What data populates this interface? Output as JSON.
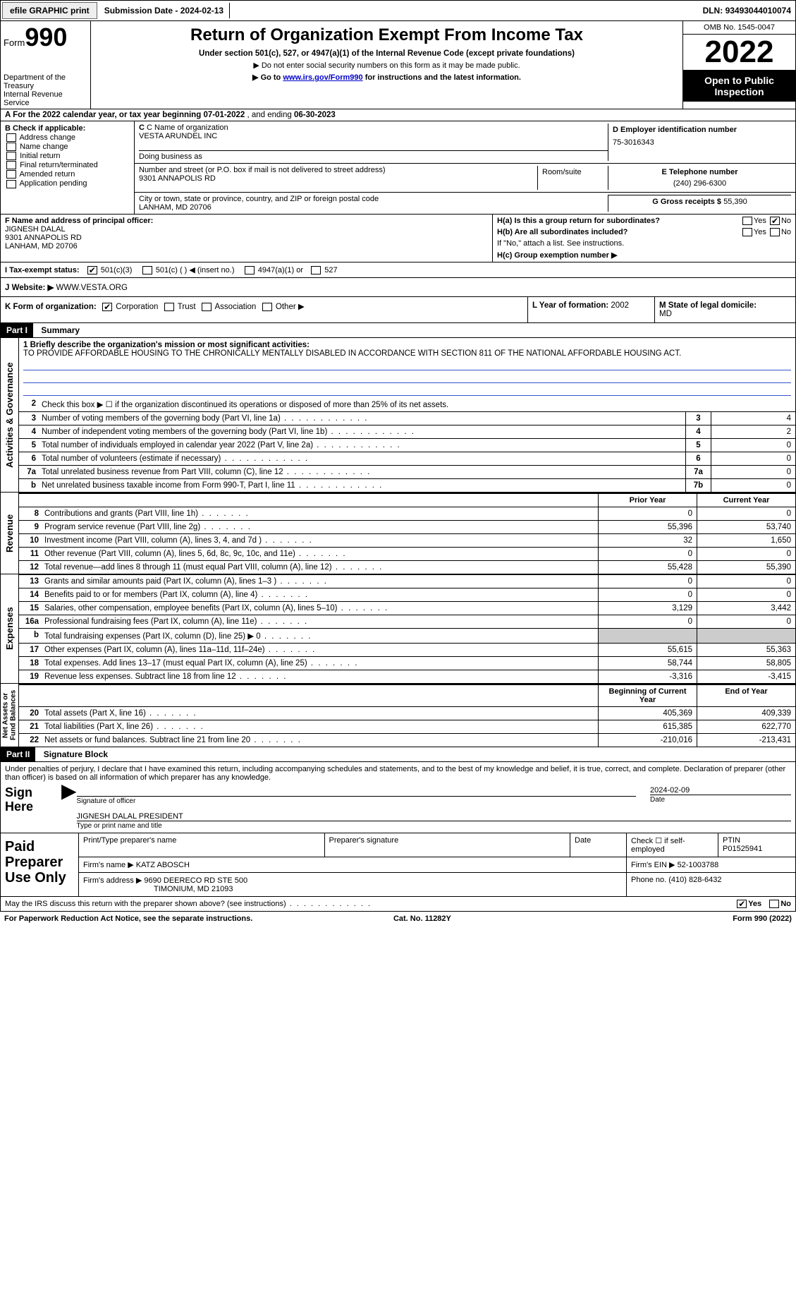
{
  "topbar": {
    "efile_btn": "efile GRAPHIC print",
    "subdate_label": "Submission Date - ",
    "subdate": "2024-02-13",
    "dln_label": "DLN: ",
    "dln": "93493044010074"
  },
  "header": {
    "form_word": "Form",
    "form_num": "990",
    "dept": "Department of the Treasury\nInternal Revenue Service",
    "title": "Return of Organization Exempt From Income Tax",
    "sub1": "Under section 501(c), 527, or 4947(a)(1) of the Internal Revenue Code (except private foundations)",
    "sub2": "▶ Do not enter social security numbers on this form as it may be made public.",
    "sub3_pre": "▶ Go to ",
    "sub3_link": "www.irs.gov/Form990",
    "sub3_post": " for instructions and the latest information.",
    "omb": "OMB No. 1545-0047",
    "year": "2022",
    "open": "Open to Public\nInspection"
  },
  "row_a": {
    "text_pre": "A For the 2022 calendar year, or tax year beginning ",
    "begin": "07-01-2022",
    "mid": "   , and ending ",
    "end": "06-30-2023"
  },
  "col_b": {
    "hdr": "B Check if applicable:",
    "opts": [
      "Address change",
      "Name change",
      "Initial return",
      "Final return/terminated",
      "Amended return",
      "Application pending"
    ]
  },
  "c": {
    "name_label": "C Name of organization",
    "name": "VESTA ARUNDEL INC",
    "dba_label": "Doing business as",
    "addr_label": "Number and street (or P.O. box if mail is not delivered to street address)",
    "addr": "9301 ANNAPOLIS RD",
    "room_label": "Room/suite",
    "city_label": "City or town, state or province, country, and ZIP or foreign postal code",
    "city": "LANHAM, MD  20706"
  },
  "d": {
    "label": "D Employer identification number",
    "val": "75-3016343"
  },
  "e": {
    "label": "E Telephone number",
    "val": "(240) 296-6300"
  },
  "g": {
    "label": "G Gross receipts $ ",
    "val": "55,390"
  },
  "f": {
    "label": "F  Name and address of principal officer:",
    "name": "JIGNESH DALAL",
    "addr1": "9301 ANNAPOLIS RD",
    "addr2": "LANHAM, MD  20706"
  },
  "h": {
    "a": "H(a)  Is this a group return for subordinates?",
    "b": "H(b)  Are all subordinates included?",
    "note": "If \"No,\" attach a list. See instructions.",
    "c": "H(c)  Group exemption number ▶",
    "yes": "Yes",
    "no": "No"
  },
  "i": {
    "label": "I   Tax-exempt status:",
    "o1": "501(c)(3)",
    "o2": "501(c) (  ) ◀ (insert no.)",
    "o3": "4947(a)(1) or",
    "o4": "527"
  },
  "j": {
    "label": "J   Website: ▶",
    "val": " WWW.VESTA.ORG"
  },
  "k": {
    "label": "K Form of organization:",
    "o1": "Corporation",
    "o2": "Trust",
    "o3": "Association",
    "o4": "Other ▶",
    "l_label": "L Year of formation: ",
    "l_val": "2002",
    "m_label": "M State of legal domicile:",
    "m_val": "MD"
  },
  "part1": {
    "tag": "Part I",
    "title": "Summary"
  },
  "mission": {
    "q": "1   Briefly describe the organization's mission or most significant activities:",
    "text": "TO PROVIDE AFFORDABLE HOUSING TO THE CHRONICALLY MENTALLY DISABLED IN ACCORDANCE WITH SECTION 811 OF THE NATIONAL AFFORDABLE HOUSING ACT."
  },
  "gov_label": "Activities & Governance",
  "gov_lines": [
    {
      "n": "2",
      "d": "Check this box ▶ ☐  if the organization discontinued its operations or disposed of more than 25% of its net assets."
    },
    {
      "n": "3",
      "d": "Number of voting members of the governing body (Part VI, line 1a)",
      "box": "3",
      "v": "4"
    },
    {
      "n": "4",
      "d": "Number of independent voting members of the governing body (Part VI, line 1b)",
      "box": "4",
      "v": "2"
    },
    {
      "n": "5",
      "d": "Total number of individuals employed in calendar year 2022 (Part V, line 2a)",
      "box": "5",
      "v": "0"
    },
    {
      "n": "6",
      "d": "Total number of volunteers (estimate if necessary)",
      "box": "6",
      "v": "0"
    },
    {
      "n": "7a",
      "d": "Total unrelated business revenue from Part VIII, column (C), line 12",
      "box": "7a",
      "v": "0"
    },
    {
      "n": "b",
      "d": "Net unrelated business taxable income from Form 990-T, Part I, line 11",
      "box": "7b",
      "v": "0"
    }
  ],
  "rev_label": "Revenue",
  "hdr_prior": "Prior Year",
  "hdr_curr": "Current Year",
  "rev_lines": [
    {
      "n": "8",
      "d": "Contributions and grants (Part VIII, line 1h)",
      "p": "0",
      "c": "0"
    },
    {
      "n": "9",
      "d": "Program service revenue (Part VIII, line 2g)",
      "p": "55,396",
      "c": "53,740"
    },
    {
      "n": "10",
      "d": "Investment income (Part VIII, column (A), lines 3, 4, and 7d )",
      "p": "32",
      "c": "1,650"
    },
    {
      "n": "11",
      "d": "Other revenue (Part VIII, column (A), lines 5, 6d, 8c, 9c, 10c, and 11e)",
      "p": "0",
      "c": "0"
    },
    {
      "n": "12",
      "d": "Total revenue—add lines 8 through 11 (must equal Part VIII, column (A), line 12)",
      "p": "55,428",
      "c": "55,390"
    }
  ],
  "exp_label": "Expenses",
  "exp_lines": [
    {
      "n": "13",
      "d": "Grants and similar amounts paid (Part IX, column (A), lines 1–3 )",
      "p": "0",
      "c": "0"
    },
    {
      "n": "14",
      "d": "Benefits paid to or for members (Part IX, column (A), line 4)",
      "p": "0",
      "c": "0"
    },
    {
      "n": "15",
      "d": "Salaries, other compensation, employee benefits (Part IX, column (A), lines 5–10)",
      "p": "3,129",
      "c": "3,442"
    },
    {
      "n": "16a",
      "d": "Professional fundraising fees (Part IX, column (A), line 11e)",
      "p": "0",
      "c": "0"
    },
    {
      "n": "b",
      "d": "Total fundraising expenses (Part IX, column (D), line 25) ▶ 0",
      "shade": true
    },
    {
      "n": "17",
      "d": "Other expenses (Part IX, column (A), lines 11a–11d, 11f–24e)",
      "p": "55,615",
      "c": "55,363"
    },
    {
      "n": "18",
      "d": "Total expenses. Add lines 13–17 (must equal Part IX, column (A), line 25)",
      "p": "58,744",
      "c": "58,805"
    },
    {
      "n": "19",
      "d": "Revenue less expenses. Subtract line 18 from line 12",
      "p": "-3,316",
      "c": "-3,415"
    }
  ],
  "net_label": "Net Assets or\nFund Balances",
  "hdr_begin": "Beginning of Current Year",
  "hdr_end": "End of Year",
  "net_lines": [
    {
      "n": "20",
      "d": "Total assets (Part X, line 16)",
      "p": "405,369",
      "c": "409,339"
    },
    {
      "n": "21",
      "d": "Total liabilities (Part X, line 26)",
      "p": "615,385",
      "c": "622,770"
    },
    {
      "n": "22",
      "d": "Net assets or fund balances. Subtract line 21 from line 20",
      "p": "-210,016",
      "c": "-213,431"
    }
  ],
  "part2": {
    "tag": "Part II",
    "title": "Signature Block"
  },
  "sig": {
    "jurat": "Under penalties of perjury, I declare that I have examined this return, including accompanying schedules and statements, and to the best of my knowledge and belief, it is true, correct, and complete. Declaration of preparer (other than officer) is based on all information of which preparer has any knowledge.",
    "here": "Sign\nHere",
    "sig_label": "Signature of officer",
    "date": "2024-02-09",
    "date_label": "Date",
    "printed": "JIGNESH DALAL PRESIDENT",
    "printed_label": "Type or print name and title"
  },
  "prep": {
    "left": "Paid\nPreparer\nUse Only",
    "h1": "Print/Type preparer's name",
    "h2": "Preparer's signature",
    "h3": "Date",
    "h4_pre": "Check ☐ if self-employed",
    "ptin_label": "PTIN",
    "ptin": "P01525941",
    "firm_label": "Firm's name    ▶ ",
    "firm": "KATZ ABOSCH",
    "ein_label": "Firm's EIN ▶ ",
    "ein": "52-1003788",
    "addr_label": "Firm's address ▶ ",
    "addr1": "9690 DEERECO RD STE 500",
    "addr2": "TIMONIUM, MD  21093",
    "phone_label": "Phone no. ",
    "phone": "(410) 828-6432"
  },
  "footer": {
    "q": "May the IRS discuss this return with the preparer shown above? (see instructions)",
    "yes": "Yes",
    "no": "No"
  },
  "last": {
    "l": "For Paperwork Reduction Act Notice, see the separate instructions.",
    "m": "Cat. No. 11282Y",
    "r": "Form 990 (2022)"
  }
}
